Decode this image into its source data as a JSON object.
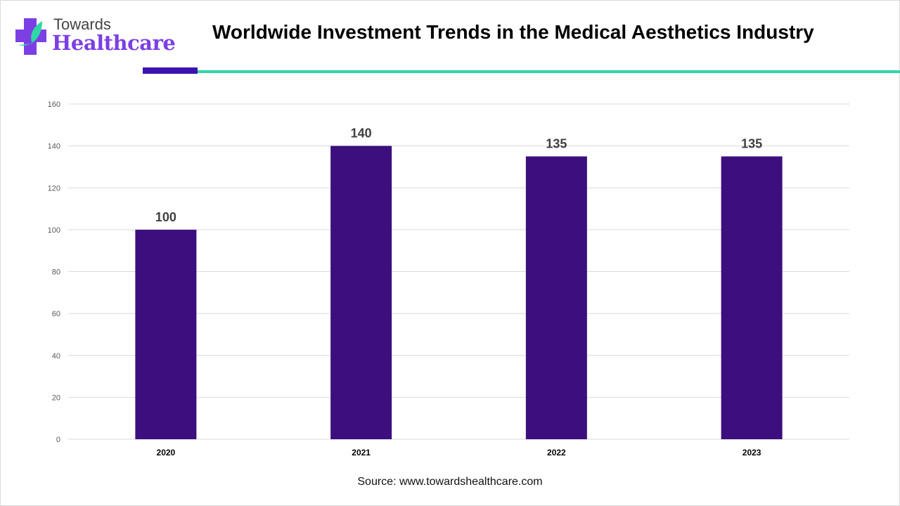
{
  "logo": {
    "line1": "Towards",
    "line2": "Healthcare"
  },
  "header": {
    "title": "Worldwide Investment Trends in the Medical Aesthetics Industry"
  },
  "colors": {
    "bar": "#3d0f7e",
    "accent_dark": "#3b13b0",
    "accent_teal": "#2dd8a5",
    "grid": "#d9d9d9"
  },
  "chart_data": {
    "type": "bar",
    "categories": [
      "2020",
      "2021",
      "2022",
      "2023"
    ],
    "values": [
      100,
      140,
      135,
      135
    ],
    "ylim": [
      0,
      160
    ],
    "yticks": [
      0,
      20,
      40,
      60,
      80,
      100,
      120,
      140,
      160
    ],
    "grid": true,
    "data_labels": true
  },
  "footer": {
    "source": "Source: www.towardshealthcare.com"
  }
}
